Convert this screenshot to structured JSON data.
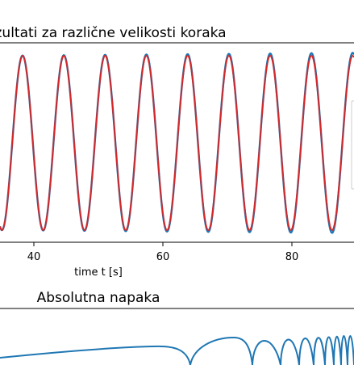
{
  "chart_data": [
    {
      "type": "line",
      "title": "Rezultati za različne velikosti koraka",
      "xlabel": "time t [s]",
      "ylabel": "",
      "xlim": [
        34.8,
        89.7
      ],
      "x_ticks": [
        "40",
        "60",
        "80"
      ],
      "grid": false,
      "series": [
        {
          "color": "#1f77b4",
          "amplitude": 1.0,
          "period": 6.4,
          "first_peak_t": 38.3,
          "amplitude_growth_per_s": 0.0006
        },
        {
          "color": "#d62728",
          "amplitude": 1.0,
          "period": 6.4,
          "first_peak_t": 38.3,
          "amplitude_growth_per_s": 0.0
        }
      ]
    },
    {
      "type": "line",
      "title": "Absolutna napaka",
      "xlabel": "",
      "ylabel": "",
      "grid": false,
      "series": [
        {
          "color": "#1f77b4"
        }
      ]
    }
  ]
}
